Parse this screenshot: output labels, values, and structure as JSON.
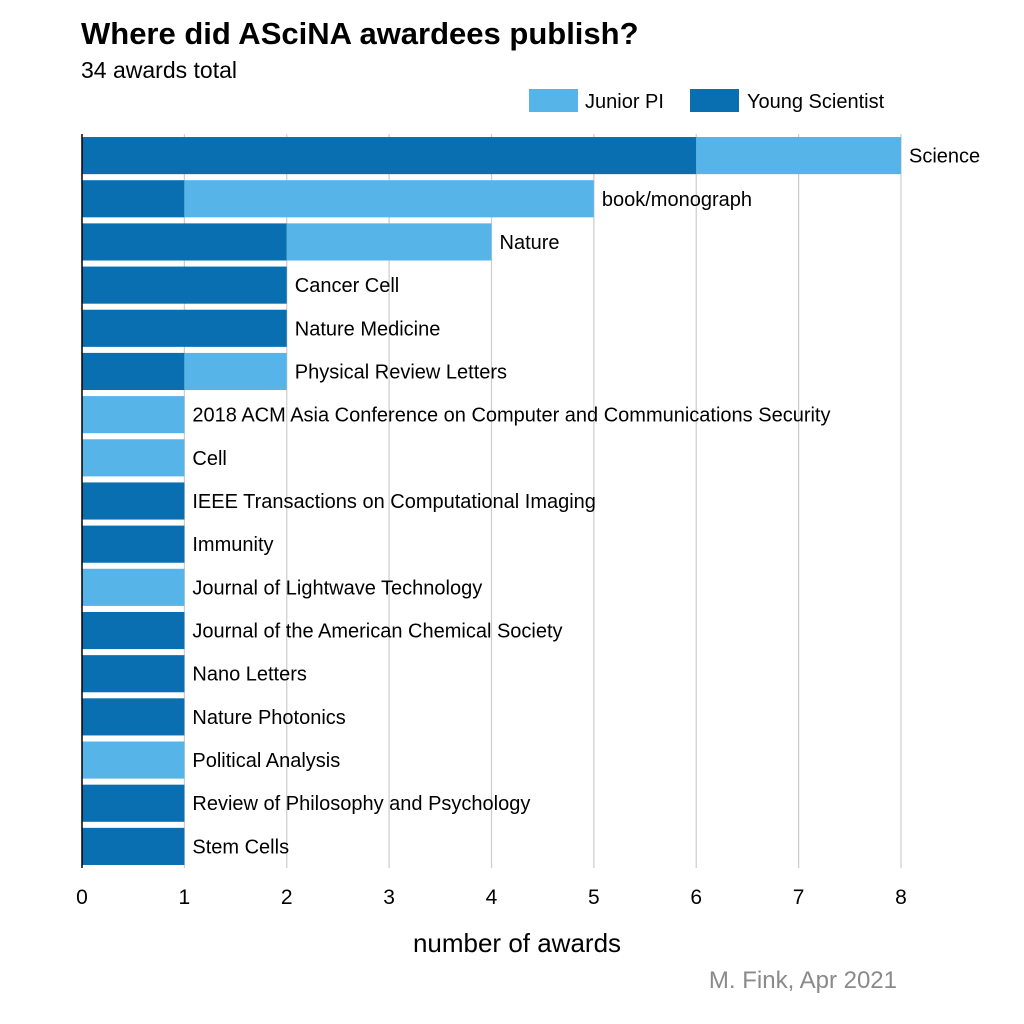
{
  "chart_data": {
    "type": "bar",
    "orientation": "horizontal",
    "stacked": true,
    "title": "Where did ASciNA awardees publish?",
    "subtitle": "34 awards total",
    "xlabel": "number of awards",
    "caption": "M. Fink, Apr 2021",
    "xlim": [
      0,
      8
    ],
    "xticks": [
      "0",
      "1",
      "2",
      "3",
      "4",
      "5",
      "6",
      "7",
      "8"
    ],
    "grid": "vertical",
    "legend_position": "top-right",
    "categories": [
      "Science",
      "book/monograph",
      "Nature",
      "Cancer Cell",
      "Nature Medicine",
      "Physical Review Letters",
      "2018 ACM Asia Conference on Computer and Communications Security",
      "Cell",
      "IEEE Transactions on Computational Imaging",
      "Immunity",
      "Journal of Lightwave Technology",
      "Journal of the American Chemical Society",
      "Nano Letters",
      "Nature Photonics",
      "Political Analysis",
      "Review of Philosophy and Psychology",
      "Stem Cells"
    ],
    "series": [
      {
        "name": "Young Scientist",
        "color": "#0a6fb0",
        "values": [
          6,
          1,
          2,
          2,
          2,
          1,
          0,
          0,
          1,
          1,
          0,
          1,
          1,
          1,
          0,
          1,
          1
        ]
      },
      {
        "name": "Junior PI",
        "color": "#56b4e9",
        "values": [
          2,
          4,
          2,
          0,
          0,
          1,
          1,
          1,
          0,
          0,
          1,
          0,
          0,
          0,
          1,
          0,
          0
        ]
      }
    ],
    "legend": [
      {
        "name": "Junior PI",
        "color": "#56b4e9"
      },
      {
        "name": "Young Scientist",
        "color": "#0a6fb0"
      }
    ]
  }
}
